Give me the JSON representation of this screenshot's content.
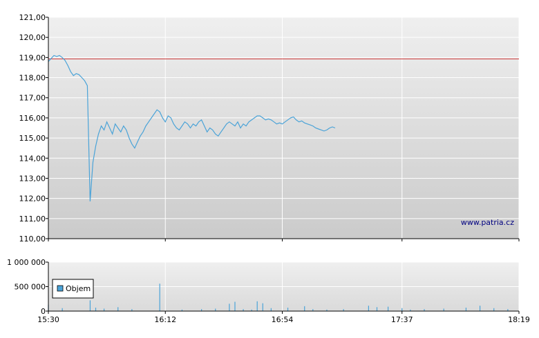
{
  "chart_data": [
    {
      "type": "line",
      "title": "",
      "xlabel": "",
      "ylabel": "",
      "ylim": [
        110,
        121
      ],
      "yticks": [
        "121,00",
        "120,00",
        "119,00",
        "118,00",
        "117,00",
        "116,00",
        "115,00",
        "114,00",
        "113,00",
        "112,00",
        "111,00",
        "110,00"
      ],
      "reference_line": {
        "value": 118.93,
        "color": "#cc3333"
      },
      "line_color": "#4aa3d8",
      "grid": true,
      "watermark": "www.patria.cz",
      "series": [
        {
          "values": [
            {
              "t": "15:30",
              "y": 118.8
            },
            {
              "t": "15:31",
              "y": 118.95
            },
            {
              "t": "15:32",
              "y": 119.1
            },
            {
              "t": "15:33",
              "y": 119.05
            },
            {
              "t": "15:34",
              "y": 119.1
            },
            {
              "t": "15:35",
              "y": 119.0
            },
            {
              "t": "15:36",
              "y": 118.85
            },
            {
              "t": "15:37",
              "y": 118.6
            },
            {
              "t": "15:38",
              "y": 118.3
            },
            {
              "t": "15:39",
              "y": 118.1
            },
            {
              "t": "15:40",
              "y": 118.2
            },
            {
              "t": "15:41",
              "y": 118.15
            },
            {
              "t": "15:42",
              "y": 118.0
            },
            {
              "t": "15:43",
              "y": 117.85
            },
            {
              "t": "15:44",
              "y": 117.6
            },
            {
              "t": "15:45",
              "y": 111.85
            },
            {
              "t": "15:46",
              "y": 113.8
            },
            {
              "t": "15:47",
              "y": 114.6
            },
            {
              "t": "15:48",
              "y": 115.2
            },
            {
              "t": "15:49",
              "y": 115.6
            },
            {
              "t": "15:50",
              "y": 115.4
            },
            {
              "t": "15:51",
              "y": 115.8
            },
            {
              "t": "15:52",
              "y": 115.5
            },
            {
              "t": "15:53",
              "y": 115.2
            },
            {
              "t": "15:54",
              "y": 115.7
            },
            {
              "t": "15:55",
              "y": 115.5
            },
            {
              "t": "15:56",
              "y": 115.3
            },
            {
              "t": "15:57",
              "y": 115.6
            },
            {
              "t": "15:58",
              "y": 115.4
            },
            {
              "t": "15:59",
              "y": 115.0
            },
            {
              "t": "16:00",
              "y": 114.7
            },
            {
              "t": "16:01",
              "y": 114.5
            },
            {
              "t": "16:02",
              "y": 114.8
            },
            {
              "t": "16:03",
              "y": 115.1
            },
            {
              "t": "16:04",
              "y": 115.3
            },
            {
              "t": "16:05",
              "y": 115.6
            },
            {
              "t": "16:06",
              "y": 115.8
            },
            {
              "t": "16:07",
              "y": 116.0
            },
            {
              "t": "16:08",
              "y": 116.2
            },
            {
              "t": "16:09",
              "y": 116.4
            },
            {
              "t": "16:10",
              "y": 116.3
            },
            {
              "t": "16:11",
              "y": 116.0
            },
            {
              "t": "16:12",
              "y": 115.8
            },
            {
              "t": "16:13",
              "y": 116.1
            },
            {
              "t": "16:14",
              "y": 116.0
            },
            {
              "t": "16:15",
              "y": 115.7
            },
            {
              "t": "16:16",
              "y": 115.5
            },
            {
              "t": "16:17",
              "y": 115.4
            },
            {
              "t": "16:18",
              "y": 115.6
            },
            {
              "t": "16:19",
              "y": 115.8
            },
            {
              "t": "16:20",
              "y": 115.7
            },
            {
              "t": "16:21",
              "y": 115.5
            },
            {
              "t": "16:22",
              "y": 115.7
            },
            {
              "t": "16:23",
              "y": 115.6
            },
            {
              "t": "16:24",
              "y": 115.8
            },
            {
              "t": "16:25",
              "y": 115.9
            },
            {
              "t": "16:26",
              "y": 115.6
            },
            {
              "t": "16:27",
              "y": 115.3
            },
            {
              "t": "16:28",
              "y": 115.5
            },
            {
              "t": "16:29",
              "y": 115.4
            },
            {
              "t": "16:30",
              "y": 115.2
            },
            {
              "t": "16:31",
              "y": 115.1
            },
            {
              "t": "16:32",
              "y": 115.3
            },
            {
              "t": "16:33",
              "y": 115.5
            },
            {
              "t": "16:34",
              "y": 115.7
            },
            {
              "t": "16:35",
              "y": 115.8
            },
            {
              "t": "16:36",
              "y": 115.7
            },
            {
              "t": "16:37",
              "y": 115.6
            },
            {
              "t": "16:38",
              "y": 115.8
            },
            {
              "t": "16:39",
              "y": 115.5
            },
            {
              "t": "16:40",
              "y": 115.7
            },
            {
              "t": "16:41",
              "y": 115.6
            },
            {
              "t": "16:42",
              "y": 115.8
            },
            {
              "t": "16:43",
              "y": 115.9
            },
            {
              "t": "16:44",
              "y": 116.0
            },
            {
              "t": "16:45",
              "y": 116.1
            },
            {
              "t": "16:46",
              "y": 116.1
            },
            {
              "t": "16:47",
              "y": 116.0
            },
            {
              "t": "16:48",
              "y": 115.9
            },
            {
              "t": "16:49",
              "y": 115.95
            },
            {
              "t": "16:50",
              "y": 115.9
            },
            {
              "t": "16:51",
              "y": 115.8
            },
            {
              "t": "16:52",
              "y": 115.7
            },
            {
              "t": "16:53",
              "y": 115.75
            },
            {
              "t": "16:54",
              "y": 115.7
            },
            {
              "t": "16:55",
              "y": 115.8
            },
            {
              "t": "16:56",
              "y": 115.9
            },
            {
              "t": "16:57",
              "y": 116.0
            },
            {
              "t": "16:58",
              "y": 116.05
            },
            {
              "t": "16:59",
              "y": 115.9
            },
            {
              "t": "17:00",
              "y": 115.8
            },
            {
              "t": "17:01",
              "y": 115.85
            },
            {
              "t": "17:02",
              "y": 115.75
            },
            {
              "t": "17:03",
              "y": 115.7
            },
            {
              "t": "17:04",
              "y": 115.65
            },
            {
              "t": "17:05",
              "y": 115.6
            },
            {
              "t": "17:06",
              "y": 115.5
            },
            {
              "t": "17:07",
              "y": 115.45
            },
            {
              "t": "17:08",
              "y": 115.4
            },
            {
              "t": "17:09",
              "y": 115.35
            },
            {
              "t": "17:10",
              "y": 115.4
            },
            {
              "t": "17:11",
              "y": 115.5
            },
            {
              "t": "17:12",
              "y": 115.55
            },
            {
              "t": "17:13",
              "y": 115.5
            }
          ]
        }
      ]
    },
    {
      "type": "bar",
      "title": "",
      "xlabel": "",
      "ylabel": "",
      "ylim": [
        0,
        1000000
      ],
      "yticks": [
        "1 000 000",
        "500 000",
        "0"
      ],
      "legend": {
        "label": "Objem",
        "placement": "top-left"
      },
      "bar_color": "#4aa3d8",
      "xticks": [
        "15:30",
        "16:12",
        "16:54",
        "17:37",
        "18:19"
      ],
      "values": [
        {
          "t": "15:30",
          "y": 130000
        },
        {
          "t": "15:35",
          "y": 60000
        },
        {
          "t": "15:45",
          "y": 220000
        },
        {
          "t": "15:47",
          "y": 70000
        },
        {
          "t": "15:50",
          "y": 50000
        },
        {
          "t": "15:55",
          "y": 80000
        },
        {
          "t": "16:00",
          "y": 40000
        },
        {
          "t": "16:10",
          "y": 560000
        },
        {
          "t": "16:18",
          "y": 30000
        },
        {
          "t": "16:25",
          "y": 40000
        },
        {
          "t": "16:30",
          "y": 50000
        },
        {
          "t": "16:35",
          "y": 150000
        },
        {
          "t": "16:37",
          "y": 190000
        },
        {
          "t": "16:40",
          "y": 40000
        },
        {
          "t": "16:43",
          "y": 30000
        },
        {
          "t": "16:45",
          "y": 200000
        },
        {
          "t": "16:47",
          "y": 160000
        },
        {
          "t": "16:50",
          "y": 60000
        },
        {
          "t": "16:56",
          "y": 70000
        },
        {
          "t": "17:02",
          "y": 100000
        },
        {
          "t": "17:05",
          "y": 40000
        },
        {
          "t": "17:10",
          "y": 30000
        },
        {
          "t": "17:16",
          "y": 40000
        },
        {
          "t": "17:25",
          "y": 110000
        },
        {
          "t": "17:28",
          "y": 80000
        },
        {
          "t": "17:32",
          "y": 90000
        },
        {
          "t": "17:37",
          "y": 60000
        },
        {
          "t": "17:40",
          "y": 30000
        },
        {
          "t": "17:45",
          "y": 40000
        },
        {
          "t": "17:52",
          "y": 50000
        },
        {
          "t": "18:00",
          "y": 70000
        },
        {
          "t": "18:05",
          "y": 110000
        },
        {
          "t": "18:10",
          "y": 60000
        },
        {
          "t": "18:15",
          "y": 40000
        }
      ]
    }
  ]
}
